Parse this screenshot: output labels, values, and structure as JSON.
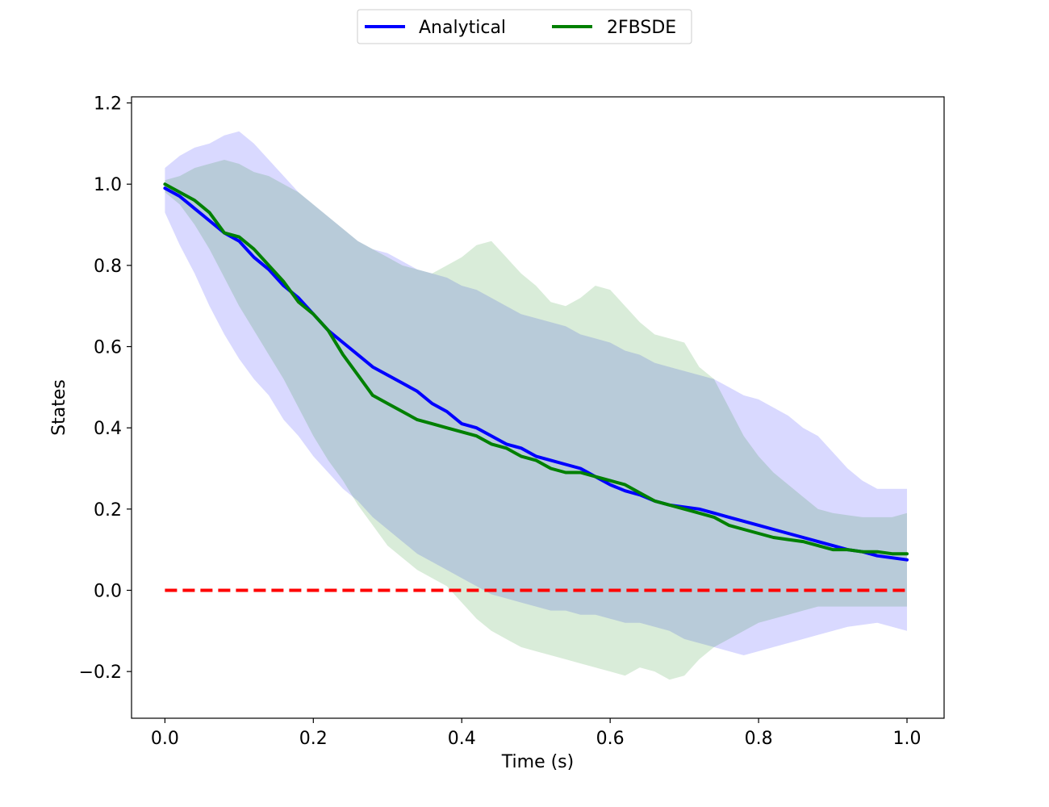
{
  "chart_data": {
    "type": "line",
    "xlabel": "Time (s)",
    "ylabel": "States",
    "xlim": [
      -0.045,
      1.05
    ],
    "ylim": [
      -0.315,
      1.215
    ],
    "xticks": [
      0.0,
      0.2,
      0.4,
      0.6,
      0.8,
      1.0
    ],
    "xtick_labels": [
      "0.0",
      "0.2",
      "0.4",
      "0.6",
      "0.8",
      "1.0"
    ],
    "yticks": [
      -0.2,
      0.0,
      0.2,
      0.4,
      0.6,
      0.8,
      1.0,
      1.2
    ],
    "ytick_labels": [
      "−0.2",
      "0.0",
      "0.2",
      "0.4",
      "0.6",
      "0.8",
      "1.0",
      "1.2"
    ],
    "grid": false,
    "legend_position": "top-center, above plot",
    "series": [
      {
        "name": "Analytical",
        "color": "#0000ff",
        "x": [
          0.0,
          0.02,
          0.04,
          0.06,
          0.08,
          0.1,
          0.12,
          0.14,
          0.16,
          0.18,
          0.2,
          0.22,
          0.24,
          0.26,
          0.28,
          0.3,
          0.32,
          0.34,
          0.36,
          0.38,
          0.4,
          0.42,
          0.44,
          0.46,
          0.48,
          0.5,
          0.52,
          0.54,
          0.56,
          0.58,
          0.6,
          0.62,
          0.64,
          0.66,
          0.68,
          0.7,
          0.72,
          0.74,
          0.76,
          0.78,
          0.8,
          0.82,
          0.84,
          0.86,
          0.88,
          0.9,
          0.92,
          0.94,
          0.96,
          0.98,
          1.0
        ],
        "y": [
          0.99,
          0.97,
          0.94,
          0.91,
          0.88,
          0.86,
          0.82,
          0.79,
          0.75,
          0.72,
          0.68,
          0.64,
          0.61,
          0.58,
          0.55,
          0.53,
          0.51,
          0.49,
          0.46,
          0.44,
          0.41,
          0.4,
          0.38,
          0.36,
          0.35,
          0.33,
          0.32,
          0.31,
          0.3,
          0.28,
          0.26,
          0.245,
          0.235,
          0.22,
          0.21,
          0.205,
          0.2,
          0.19,
          0.18,
          0.17,
          0.16,
          0.15,
          0.14,
          0.13,
          0.12,
          0.11,
          0.1,
          0.095,
          0.085,
          0.08,
          0.075
        ],
        "band_upper": [
          1.04,
          1.07,
          1.09,
          1.1,
          1.12,
          1.13,
          1.1,
          1.06,
          1.02,
          0.98,
          0.95,
          0.92,
          0.89,
          0.86,
          0.84,
          0.83,
          0.81,
          0.79,
          0.78,
          0.77,
          0.75,
          0.74,
          0.72,
          0.7,
          0.68,
          0.67,
          0.66,
          0.65,
          0.63,
          0.62,
          0.61,
          0.59,
          0.58,
          0.56,
          0.55,
          0.54,
          0.53,
          0.52,
          0.5,
          0.48,
          0.47,
          0.45,
          0.43,
          0.4,
          0.38,
          0.34,
          0.3,
          0.27,
          0.25,
          0.25,
          0.25
        ],
        "band_lower": [
          0.93,
          0.85,
          0.78,
          0.7,
          0.63,
          0.57,
          0.52,
          0.48,
          0.42,
          0.38,
          0.33,
          0.29,
          0.25,
          0.22,
          0.18,
          0.15,
          0.12,
          0.09,
          0.07,
          0.05,
          0.03,
          0.01,
          -0.01,
          -0.02,
          -0.03,
          -0.04,
          -0.05,
          -0.05,
          -0.06,
          -0.06,
          -0.07,
          -0.08,
          -0.08,
          -0.09,
          -0.1,
          -0.12,
          -0.13,
          -0.14,
          -0.15,
          -0.16,
          -0.15,
          -0.14,
          -0.13,
          -0.12,
          -0.11,
          -0.1,
          -0.09,
          -0.085,
          -0.08,
          -0.09,
          -0.1
        ]
      },
      {
        "name": "2FBSDE",
        "color": "#008000",
        "x": [
          0.0,
          0.02,
          0.04,
          0.06,
          0.08,
          0.1,
          0.12,
          0.14,
          0.16,
          0.18,
          0.2,
          0.22,
          0.24,
          0.26,
          0.28,
          0.3,
          0.32,
          0.34,
          0.36,
          0.38,
          0.4,
          0.42,
          0.44,
          0.46,
          0.48,
          0.5,
          0.52,
          0.54,
          0.56,
          0.58,
          0.6,
          0.62,
          0.64,
          0.66,
          0.68,
          0.7,
          0.72,
          0.74,
          0.76,
          0.78,
          0.8,
          0.82,
          0.84,
          0.86,
          0.88,
          0.9,
          0.92,
          0.94,
          0.96,
          0.98,
          1.0
        ],
        "y": [
          1.0,
          0.98,
          0.96,
          0.93,
          0.88,
          0.87,
          0.84,
          0.8,
          0.76,
          0.71,
          0.68,
          0.64,
          0.58,
          0.53,
          0.48,
          0.46,
          0.44,
          0.42,
          0.41,
          0.4,
          0.39,
          0.38,
          0.36,
          0.35,
          0.33,
          0.32,
          0.3,
          0.29,
          0.29,
          0.28,
          0.27,
          0.26,
          0.24,
          0.22,
          0.21,
          0.2,
          0.19,
          0.18,
          0.16,
          0.15,
          0.14,
          0.13,
          0.125,
          0.12,
          0.11,
          0.1,
          0.1,
          0.095,
          0.095,
          0.09,
          0.09
        ],
        "band_upper": [
          1.01,
          1.02,
          1.04,
          1.05,
          1.06,
          1.05,
          1.03,
          1.02,
          1.0,
          0.98,
          0.95,
          0.92,
          0.89,
          0.86,
          0.84,
          0.82,
          0.8,
          0.79,
          0.78,
          0.8,
          0.82,
          0.85,
          0.86,
          0.82,
          0.78,
          0.75,
          0.71,
          0.7,
          0.72,
          0.75,
          0.74,
          0.7,
          0.66,
          0.63,
          0.62,
          0.61,
          0.55,
          0.52,
          0.45,
          0.38,
          0.33,
          0.29,
          0.26,
          0.23,
          0.2,
          0.19,
          0.185,
          0.18,
          0.18,
          0.18,
          0.19
        ],
        "band_lower": [
          0.98,
          0.95,
          0.9,
          0.84,
          0.77,
          0.7,
          0.64,
          0.58,
          0.52,
          0.45,
          0.38,
          0.32,
          0.27,
          0.21,
          0.16,
          0.11,
          0.08,
          0.05,
          0.03,
          0.01,
          -0.03,
          -0.07,
          -0.1,
          -0.12,
          -0.14,
          -0.15,
          -0.16,
          -0.17,
          -0.18,
          -0.19,
          -0.2,
          -0.21,
          -0.19,
          -0.2,
          -0.22,
          -0.21,
          -0.17,
          -0.14,
          -0.12,
          -0.1,
          -0.08,
          -0.07,
          -0.06,
          -0.05,
          -0.04,
          -0.04,
          -0.04,
          -0.04,
          -0.04,
          -0.04,
          -0.04
        ]
      }
    ],
    "reference_line": {
      "y": 0.0,
      "x_range": [
        0.0,
        1.0
      ],
      "color": "#ff0000",
      "style": "dashed"
    }
  }
}
